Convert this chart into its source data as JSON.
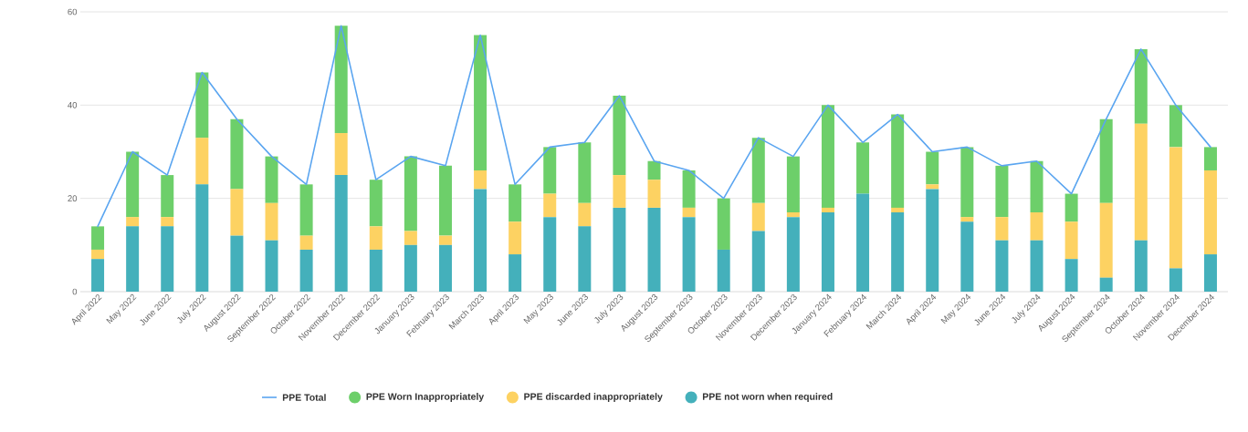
{
  "chart_data": {
    "type": "bar",
    "stacked": true,
    "categories": [
      "April 2022",
      "May 2022",
      "June 2022",
      "July 2022",
      "August 2022",
      "September 2022",
      "October 2022",
      "November 2022",
      "December 2022",
      "January 2023",
      "February 2023",
      "March 2023",
      "April 2023",
      "May 2023",
      "June 2023",
      "July 2023",
      "August 2023",
      "September 2023",
      "October 2023",
      "November 2023",
      "December 2023",
      "January 2024",
      "February 2024",
      "March 2024",
      "April 2024",
      "May 2024",
      "June 2024",
      "July 2024",
      "August 2024",
      "September 2024",
      "October 2024",
      "November 2024",
      "December 2024"
    ],
    "series": [
      {
        "name": "PPE not worn when required",
        "color": "#44b0bb",
        "values": [
          7,
          14,
          14,
          23,
          12,
          11,
          9,
          25,
          9,
          10,
          10,
          22,
          8,
          16,
          14,
          18,
          18,
          16,
          9,
          13,
          16,
          17,
          21,
          17,
          22,
          15,
          11,
          11,
          7,
          3,
          11,
          5,
          8
        ]
      },
      {
        "name": "PPE discarded inappropriately",
        "color": "#fdd262",
        "values": [
          2,
          2,
          2,
          10,
          10,
          8,
          3,
          9,
          5,
          3,
          2,
          4,
          7,
          5,
          5,
          7,
          6,
          2,
          0,
          6,
          1,
          1,
          0,
          1,
          1,
          1,
          5,
          6,
          8,
          16,
          25,
          26,
          18
        ]
      },
      {
        "name": "PPE Worn Inappropriately",
        "color": "#6dcf6a",
        "values": [
          5,
          14,
          9,
          14,
          15,
          10,
          11,
          23,
          10,
          16,
          15,
          29,
          8,
          10,
          13,
          17,
          4,
          8,
          11,
          14,
          12,
          22,
          11,
          20,
          7,
          15,
          11,
          11,
          6,
          18,
          16,
          9,
          5
        ]
      },
      {
        "name": "PPE Total",
        "type": "line",
        "color": "#5aa5f0",
        "values": [
          14,
          30,
          25,
          47,
          37,
          29,
          23,
          57,
          24,
          29,
          27,
          55,
          23,
          31,
          32,
          42,
          28,
          26,
          20,
          33,
          29,
          40,
          32,
          38,
          30,
          31,
          27,
          28,
          21,
          37,
          52,
          40,
          31
        ]
      }
    ],
    "ylim": [
      0,
      60
    ],
    "yticks": [
      0,
      20,
      40,
      60
    ],
    "grid": "y",
    "legend": "bottom",
    "marker": "none",
    "line_style": "solid"
  }
}
